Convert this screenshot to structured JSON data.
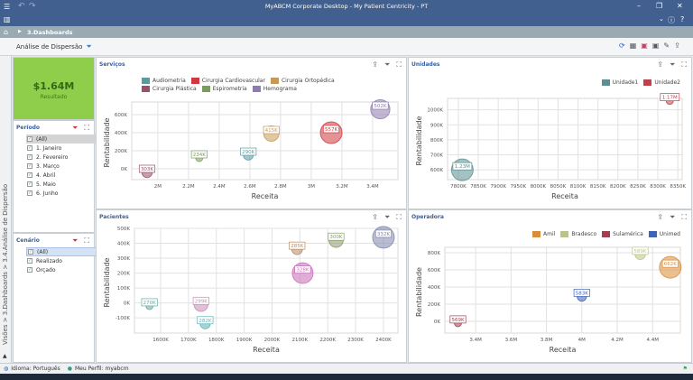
{
  "window": {
    "title": "MyABCM Corporate Desktop - My Patient Centricity - PT"
  },
  "breadcrumb": {
    "item": "3.Dashboards"
  },
  "page": {
    "title": "Análise de Dispersão"
  },
  "side_path": "Visões > 3.Dashboards > 3.4.Análise de Dispersão",
  "kpi": {
    "value": "$1.64M",
    "label": "Resultado"
  },
  "filters": {
    "periodo": {
      "title": "Período",
      "items": [
        "(All)",
        "1. Janeiro",
        "2. Fevereiro",
        "3. Março",
        "4. Abril",
        "5. Maio",
        "6. Junho"
      ]
    },
    "cenario": {
      "title": "Cenário",
      "items": [
        "(All)",
        "Realizado",
        "Orçado"
      ]
    }
  },
  "status": {
    "language": "Idioma: Português",
    "profile": "Meu Perfil: myabcm"
  },
  "chart_data": [
    {
      "type": "scatter",
      "title": "Serviços",
      "xlabel": "Receita",
      "ylabel": "Rentabilidade",
      "xlim": [
        1830000,
        3565000
      ],
      "ylim": [
        -120000,
        740000
      ],
      "xticks": [
        2000000,
        2200000,
        2400000,
        2600000,
        2800000,
        3000000,
        3200000,
        3400000
      ],
      "xtick_labels": [
        "2M",
        "2.2M",
        "2.4M",
        "2.6M",
        "2.8M",
        "3M",
        "3.2M",
        "3.4M"
      ],
      "yticks": [
        0,
        200000,
        400000,
        600000
      ],
      "ytick_labels": [
        "0K",
        "200K",
        "400K",
        "600K"
      ],
      "legend": [
        "Audiometria",
        "Cirurgia Cardiovascular",
        "Cirurgia Ortopédica",
        "Cirurgia Plástica",
        "Espirometria",
        "Hemograma"
      ],
      "colors": [
        "#5b9aa0",
        "#d0393f",
        "#c49a5a",
        "#9b4f6e",
        "#7d9a5e",
        "#8f7cae"
      ],
      "points": [
        {
          "series": 3,
          "x": 1930000,
          "y": -40000,
          "size": 303,
          "label": "303K"
        },
        {
          "series": 4,
          "x": 2270000,
          "y": 120000,
          "size": 234,
          "label": "234K"
        },
        {
          "series": 0,
          "x": 2590000,
          "y": 150000,
          "size": 290,
          "label": "290K"
        },
        {
          "series": 2,
          "x": 2740000,
          "y": 390000,
          "size": 415,
          "label": "415K"
        },
        {
          "series": 1,
          "x": 3130000,
          "y": 400000,
          "size": 557,
          "label": "557K"
        },
        {
          "series": 5,
          "x": 3450000,
          "y": 660000,
          "size": 502,
          "label": "502K"
        }
      ]
    },
    {
      "type": "scatter",
      "title": "Unidades",
      "xlabel": "Receita",
      "ylabel": "Rentabilidade",
      "xlim": [
        7773000,
        8361000
      ],
      "ylim": [
        535000,
        1076000
      ],
      "xticks": [
        7800000,
        7850000,
        7900000,
        7950000,
        8000000,
        8050000,
        8100000,
        8150000,
        8200000,
        8250000,
        8300000,
        8350000
      ],
      "xtick_labels": [
        "7800K",
        "7850K",
        "7900K",
        "7950K",
        "8000K",
        "8050K",
        "8100K",
        "8150K",
        "8200K",
        "8250K",
        "8300K",
        "8350K"
      ],
      "yticks": [
        600000,
        700000,
        800000,
        900000,
        1000000
      ],
      "ytick_labels": [
        "600K",
        "700K",
        "800K",
        "900K",
        "1000K"
      ],
      "legend": [
        "Unidade1",
        "Unidade2"
      ],
      "colors": [
        "#5b8f91",
        "#c2404a"
      ],
      "points": [
        {
          "series": 0,
          "x": 7810000,
          "y": 600000,
          "size": 1230,
          "label": "1.23M"
        },
        {
          "series": 1,
          "x": 8330000,
          "y": 1060000,
          "size": 1170,
          "label": "1.17M"
        }
      ]
    },
    {
      "type": "scatter",
      "title": "Pacientes",
      "xlabel": "Receita",
      "ylabel": "Rentabilidade",
      "xlim": [
        1506000,
        2452000
      ],
      "ylim": [
        -202000,
        500000
      ],
      "xticks": [
        1600000,
        1700000,
        1800000,
        1900000,
        2000000,
        2100000,
        2200000,
        2300000,
        2400000
      ],
      "xtick_labels": [
        "1600K",
        "1700K",
        "1800K",
        "1900K",
        "2000K",
        "2100K",
        "2200K",
        "2300K",
        "2400K"
      ],
      "yticks": [
        -100000,
        0,
        100000,
        200000,
        300000,
        400000,
        500000
      ],
      "ytick_labels": [
        "-100K",
        "0K",
        "100K",
        "200K",
        "300K",
        "400K",
        "500K"
      ],
      "legend": [],
      "colors": [
        "#6aa89c",
        "#c98bb5",
        "#5fb3b5",
        "#b58a66",
        "#c76ab8",
        "#8a9a6a",
        "#7f86ab"
      ],
      "points": [
        {
          "series": 0,
          "x": 1560000,
          "y": -20000,
          "size": 270,
          "label": "270K"
        },
        {
          "series": 1,
          "x": 1745000,
          "y": -10000,
          "size": 299,
          "label": "299K"
        },
        {
          "series": 2,
          "x": 1760000,
          "y": -140000,
          "size": 282,
          "label": "282K"
        },
        {
          "series": 3,
          "x": 2090000,
          "y": 360000,
          "size": 285,
          "label": "285K"
        },
        {
          "series": 4,
          "x": 2110000,
          "y": 200000,
          "size": 328,
          "label": "328K"
        },
        {
          "series": 5,
          "x": 2230000,
          "y": 420000,
          "size": 300,
          "label": "300K"
        },
        {
          "series": 6,
          "x": 2400000,
          "y": 440000,
          "size": 332,
          "label": "332K"
        }
      ]
    },
    {
      "type": "scatter",
      "title": "Operadora",
      "xlabel": "Receita",
      "ylabel": "Rentabilidade",
      "xlim": [
        3226000,
        4557000
      ],
      "ylim": [
        -137000,
        863000
      ],
      "xticks": [
        3400000,
        3600000,
        3800000,
        4000000,
        4200000,
        4400000
      ],
      "xtick_labels": [
        "3.4M",
        "3.6M",
        "3.8M",
        "4M",
        "4.2M",
        "4.4M"
      ],
      "yticks": [
        0,
        200000,
        400000,
        600000,
        800000
      ],
      "ytick_labels": [
        "0K",
        "200K",
        "400K",
        "600K",
        "800K"
      ],
      "legend": [
        "Amil",
        "Bradesco",
        "Sulamérica",
        "Unimed"
      ],
      "colors": [
        "#d98c3a",
        "#b8c48a",
        "#a0404f",
        "#3f63b8"
      ],
      "points": [
        {
          "series": 2,
          "x": 3300000,
          "y": -20000,
          "size": 569,
          "label": "569K"
        },
        {
          "series": 3,
          "x": 4000000,
          "y": 290000,
          "size": 583,
          "label": "583K"
        },
        {
          "series": 1,
          "x": 4330000,
          "y": 780000,
          "size": 589,
          "label": "589K"
        },
        {
          "series": 0,
          "x": 4500000,
          "y": 630000,
          "size": 662,
          "label": "662K"
        }
      ]
    }
  ]
}
